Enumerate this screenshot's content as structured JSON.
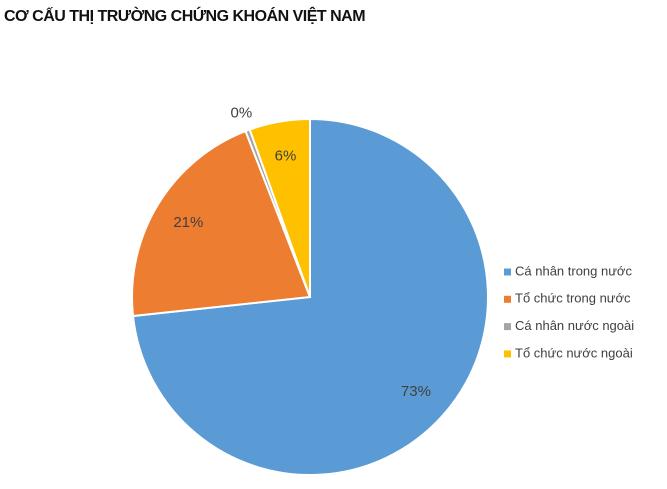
{
  "chart_data": {
    "type": "pie",
    "title": "CƠ CẤU THỊ TRƯỜNG CHỨNG KHOÁN VIỆT NAM",
    "categories": [
      "Cá nhân trong nước",
      "Tổ chức trong nước",
      "Cá nhân nước ngoài",
      "Tổ chức nước ngoài"
    ],
    "values": [
      73.3,
      20.8,
      0.4,
      5.5
    ],
    "value_labels": [
      "73%",
      "21%",
      "0%",
      "6%"
    ],
    "colors": [
      "#5b9bd5",
      "#ed7d31",
      "#a5a5a5",
      "#ffc000"
    ],
    "legend": "right"
  }
}
